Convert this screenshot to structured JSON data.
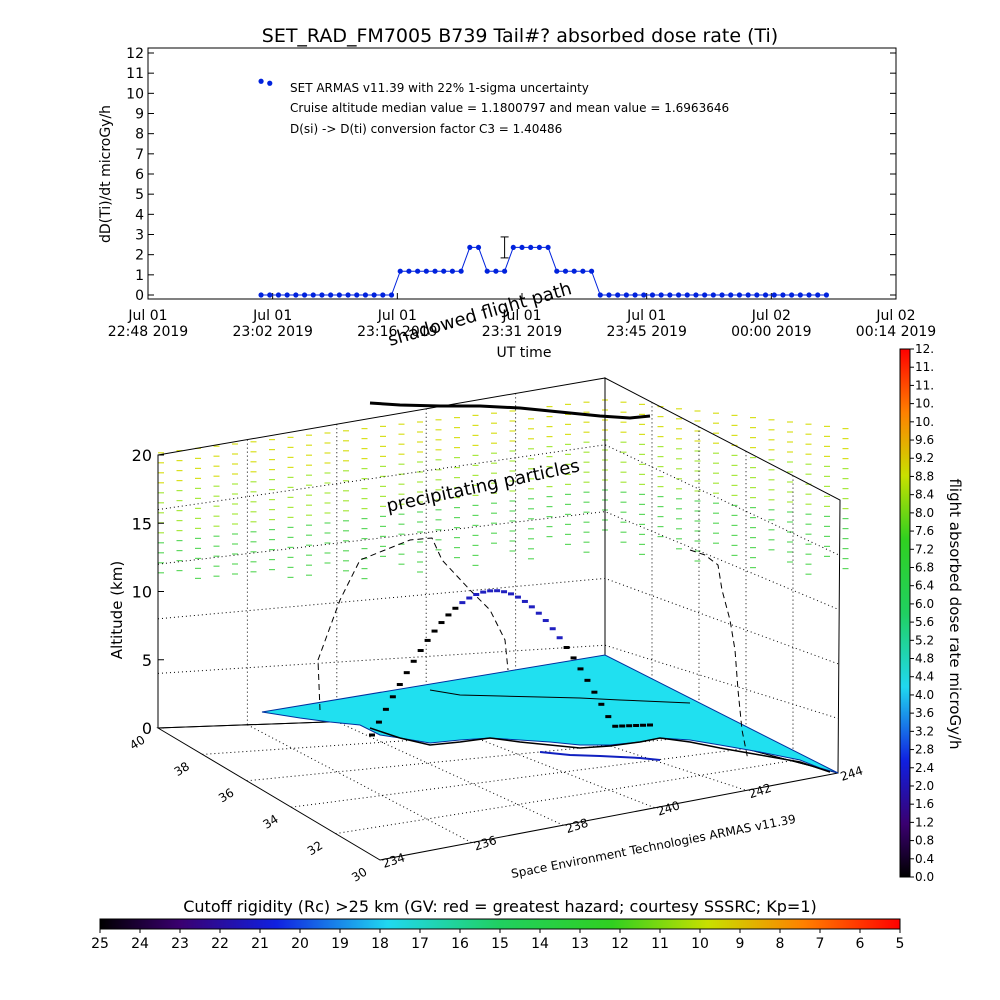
{
  "top_chart": {
    "title": "SET_RAD_FM7005  B739 Tail#? absorbed dose rate (Ti)",
    "ylabel": "dD(Ti)/dt microGy/h",
    "xlabel": "UT time",
    "ylim": [
      0,
      12
    ],
    "yticks": [
      "0",
      "1",
      "2",
      "3",
      "4",
      "5",
      "6",
      "7",
      "8",
      "9",
      "10",
      "11",
      "12"
    ],
    "xticks": [
      {
        "l1": "Jul 01",
        "l2": "22:48 2019"
      },
      {
        "l1": "Jul 01",
        "l2": "23:02 2019"
      },
      {
        "l1": "Jul 01",
        "l2": "23:16 2019"
      },
      {
        "l1": "Jul 01",
        "l2": "23:31 2019"
      },
      {
        "l1": "Jul 01",
        "l2": "23:45 2019"
      },
      {
        "l1": "Jul 02",
        "l2": "00:00 2019"
      },
      {
        "l1": "Jul 02",
        "l2": "00:14 2019"
      }
    ],
    "annotations": [
      "SET ARMAS v11.39 with 22% 1-sigma uncertainty",
      "Cruise altitude median value = 1.1800797 and mean value = 1.6963646",
      "D(si) -> D(ti) conversion factor C3 = 1.40486"
    ],
    "shadow_label": "shadowed flight path"
  },
  "chart_data": [
    {
      "type": "line",
      "title": "SET_RAD_FM7005  B739 Tail#? absorbed dose rate (Ti)",
      "xlabel": "UT time",
      "ylabel": "dD(Ti)/dt microGy/h",
      "ylim": [
        0,
        12
      ],
      "x_unit": "minutes after Jul 01 22:48 2019",
      "xlim": [
        0,
        86
      ],
      "series": [
        {
          "color": "#0022dd",
          "x": [
            13,
            14,
            15,
            16,
            17,
            18,
            19,
            20,
            21,
            22,
            23,
            24,
            25,
            26,
            27,
            28,
            29,
            30,
            31,
            32,
            33,
            34,
            35,
            36,
            37,
            38,
            39,
            40,
            41,
            42,
            43,
            44,
            45,
            46,
            47,
            48,
            49,
            50,
            51,
            52,
            53,
            54,
            55,
            56,
            57,
            58,
            59,
            60,
            61,
            62,
            63,
            64,
            65,
            66,
            67,
            68,
            69,
            70,
            71,
            72,
            73,
            74,
            75,
            76,
            77,
            78
          ],
          "y": [
            0,
            0,
            0,
            0,
            0,
            0,
            0,
            0,
            0,
            0,
            0,
            0,
            0,
            0,
            0,
            0,
            1.18,
            1.18,
            1.18,
            1.18,
            1.18,
            1.18,
            1.18,
            1.18,
            2.36,
            2.36,
            1.18,
            1.18,
            1.18,
            2.36,
            2.36,
            2.36,
            2.36,
            2.36,
            1.18,
            1.18,
            1.18,
            1.18,
            1.18,
            0,
            0,
            0,
            0,
            0,
            0,
            0,
            0,
            0,
            0,
            0,
            0,
            0,
            0,
            0,
            0,
            0,
            0,
            0,
            0,
            0,
            0,
            0,
            0,
            0,
            0,
            0
          ]
        },
        {
          "color": "#0022dd",
          "x": [
            13,
            14
          ],
          "y": [
            10.6,
            10.5
          ],
          "style": "points"
        }
      ],
      "error_bar": {
        "x": 41,
        "y": 2.36,
        "err": 0.52
      }
    },
    {
      "type": "scatter",
      "subtype": "3d-flight-track",
      "zlabel": "Altitude (km)",
      "zlim": [
        0,
        20
      ],
      "zticks": [
        "0",
        "5",
        "10",
        "15",
        "20"
      ],
      "lat_ticks": [
        "30",
        "32",
        "34",
        "36",
        "38",
        "40"
      ],
      "lon_ticks": [
        "234",
        "236",
        "238",
        "240",
        "242",
        "244"
      ],
      "labels": [
        "precipitating particles",
        "Space Environment Technologies ARMAS v11.39"
      ]
    }
  ],
  "colorbar_right": {
    "label": "flight absorbed dose rate microGy/h",
    "ticks": [
      "0.0",
      "0.4",
      "0.8",
      "1.2",
      "1.6",
      "2.0",
      "2.4",
      "2.8",
      "3.2",
      "3.6",
      "4.0",
      "4.4",
      "4.8",
      "5.2",
      "5.6",
      "6.0",
      "6.4",
      "6.8",
      "7.2",
      "7.6",
      "8.0",
      "8.4",
      "8.8",
      "9.2",
      "9.6",
      "10.",
      "10.",
      "11.",
      "11.",
      "12."
    ]
  },
  "colorbar_bottom": {
    "label": "Cutoff rigidity (Rc) >25 km (GV: red = greatest hazard; courtesy SSSRC; Kp=1)",
    "ticks": [
      "25",
      "24",
      "23",
      "22",
      "21",
      "20",
      "19",
      "18",
      "17",
      "16",
      "15",
      "14",
      "13",
      "12",
      "11",
      "10",
      "9",
      "8",
      "7",
      "6",
      "5"
    ]
  },
  "colors": {
    "data_blue": "#0022dd",
    "sea_cyan": "#20e0f0",
    "particles": "#a8e840"
  }
}
